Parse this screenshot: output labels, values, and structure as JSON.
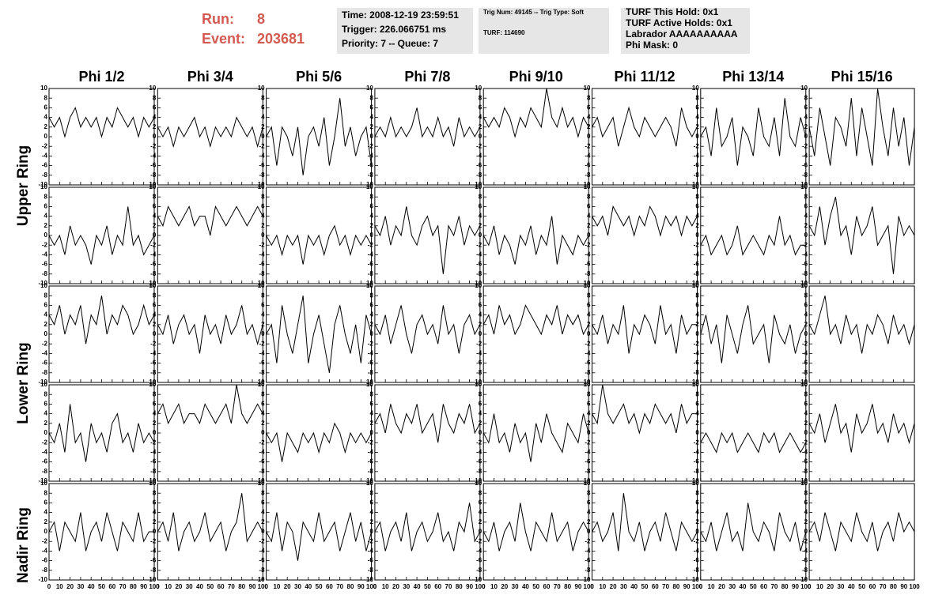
{
  "header": {
    "run_label": "Run:",
    "run": 8,
    "event_label": "Event:",
    "event": 203681,
    "box1": [
      "Time: 2008-12-19 23:59:51",
      "Trigger: 226.066751 ms",
      "Priority: 7 -- Queue: 7"
    ],
    "box2": [
      "Trig Num: 49145 -- Trig Type: Soft",
      "TURF: 114690"
    ],
    "box3": [
      "TURF This Hold: 0x1",
      "TURF Active Holds: 0x1",
      "Labrador AAAAAAAAAA",
      "Phi Mask: 0"
    ]
  },
  "chart_data": {
    "type": "line",
    "columns": [
      "Phi 1/2",
      "Phi 3/4",
      "Phi 5/6",
      "Phi 7/8",
      "Phi 9/10",
      "Phi 11/12",
      "Phi 13/14",
      "Phi 15/16"
    ],
    "rows": [
      "Upper Ring",
      "Lower Ring",
      "Nadir Ring"
    ],
    "color": "#000000",
    "xlim": [
      0,
      100
    ],
    "xticks": [
      0,
      10,
      20,
      30,
      40,
      50,
      60,
      70,
      80,
      90,
      100
    ],
    "ylim": [
      -10,
      10
    ],
    "yticks": [
      -10,
      -8,
      -6,
      -4,
      -2,
      0,
      2,
      4,
      6,
      8,
      10
    ],
    "x": [
      0,
      5,
      10,
      15,
      20,
      25,
      30,
      35,
      40,
      45,
      50,
      55,
      60,
      65,
      70,
      75,
      80,
      85,
      90,
      95,
      100
    ],
    "panels": [
      [
        [
          4,
          2,
          4,
          0,
          4,
          6,
          2,
          4,
          2,
          4,
          0,
          4,
          2,
          6,
          4,
          2,
          4,
          0,
          4,
          2,
          4
        ],
        [
          2,
          0,
          2,
          -2,
          2,
          0,
          2,
          4,
          0,
          2,
          -2,
          2,
          0,
          2,
          0,
          4,
          2,
          0,
          2,
          -2,
          2
        ],
        [
          0,
          2,
          -6,
          2,
          0,
          -4,
          2,
          -8,
          0,
          2,
          -2,
          4,
          -6,
          0,
          8,
          -2,
          2,
          -4,
          0,
          2,
          -6
        ],
        [
          0,
          2,
          0,
          4,
          0,
          2,
          0,
          2,
          6,
          0,
          2,
          0,
          4,
          0,
          2,
          -2,
          4,
          0,
          2,
          0,
          2
        ],
        [
          4,
          2,
          4,
          2,
          6,
          4,
          0,
          4,
          2,
          6,
          4,
          2,
          10,
          4,
          2,
          6,
          2,
          4,
          0,
          4,
          2
        ],
        [
          2,
          4,
          0,
          2,
          4,
          -2,
          2,
          6,
          2,
          0,
          4,
          2,
          0,
          2,
          4,
          2,
          -2,
          6,
          2,
          0,
          2
        ],
        [
          0,
          2,
          -4,
          6,
          -2,
          0,
          4,
          -6,
          2,
          0,
          -4,
          6,
          0,
          -2,
          4,
          -4,
          8,
          0,
          -2,
          4,
          0
        ],
        [
          2,
          -4,
          6,
          0,
          -6,
          4,
          2,
          -2,
          8,
          -4,
          6,
          0,
          -6,
          10,
          2,
          -4,
          6,
          -2,
          4,
          -6,
          2
        ]
      ],
      [
        [
          0,
          -2,
          0,
          -4,
          2,
          -2,
          0,
          -2,
          -6,
          0,
          -2,
          2,
          -4,
          0,
          -2,
          6,
          -2,
          0,
          -4,
          -2,
          0
        ],
        [
          4,
          2,
          6,
          4,
          2,
          4,
          6,
          2,
          4,
          4,
          0,
          6,
          4,
          2,
          4,
          6,
          4,
          2,
          4,
          6,
          4
        ],
        [
          0,
          -2,
          0,
          -4,
          0,
          -2,
          0,
          -6,
          0,
          -2,
          0,
          -4,
          0,
          2,
          -2,
          0,
          -4,
          0,
          -2,
          0,
          -2
        ],
        [
          2,
          0,
          4,
          -2,
          2,
          0,
          6,
          0,
          -2,
          2,
          4,
          0,
          2,
          -8,
          2,
          0,
          4,
          -2,
          2,
          0,
          2
        ],
        [
          0,
          -2,
          2,
          -4,
          0,
          -2,
          -6,
          0,
          -2,
          2,
          -4,
          0,
          -2,
          4,
          -6,
          0,
          -2,
          -4,
          0,
          -2,
          0
        ],
        [
          4,
          2,
          4,
          0,
          6,
          4,
          2,
          4,
          0,
          4,
          2,
          6,
          4,
          0,
          4,
          2,
          4,
          0,
          4,
          2,
          4
        ],
        [
          -2,
          0,
          -4,
          -2,
          0,
          -4,
          -2,
          2,
          -4,
          -2,
          0,
          -2,
          -4,
          0,
          -2,
          4,
          -2,
          0,
          -4,
          -2,
          -2
        ],
        [
          2,
          0,
          6,
          -2,
          4,
          8,
          0,
          2,
          -4,
          4,
          0,
          2,
          6,
          -2,
          0,
          2,
          -8,
          4,
          0,
          2,
          0
        ]
      ],
      [
        [
          4,
          2,
          6,
          0,
          4,
          2,
          6,
          -2,
          4,
          2,
          8,
          0,
          4,
          2,
          6,
          4,
          0,
          2,
          6,
          2,
          4
        ],
        [
          2,
          0,
          4,
          -2,
          2,
          4,
          0,
          2,
          -4,
          4,
          0,
          2,
          -2,
          4,
          0,
          2,
          6,
          0,
          2,
          -2,
          2
        ],
        [
          0,
          2,
          -6,
          6,
          0,
          -4,
          2,
          8,
          -6,
          0,
          4,
          -2,
          -8,
          2,
          6,
          0,
          -4,
          2,
          -6,
          4,
          0
        ],
        [
          2,
          0,
          4,
          -2,
          2,
          6,
          0,
          -4,
          2,
          4,
          0,
          2,
          -2,
          6,
          0,
          2,
          -4,
          2,
          4,
          0,
          2
        ],
        [
          2,
          4,
          0,
          6,
          2,
          4,
          0,
          2,
          6,
          4,
          2,
          0,
          4,
          2,
          6,
          0,
          4,
          2,
          4,
          0,
          2
        ],
        [
          2,
          0,
          4,
          -2,
          2,
          0,
          6,
          -4,
          2,
          0,
          4,
          2,
          -2,
          6,
          0,
          2,
          -4,
          4,
          0,
          2,
          2
        ],
        [
          0,
          4,
          -2,
          2,
          -6,
          4,
          0,
          -4,
          2,
          6,
          -2,
          0,
          2,
          -6,
          4,
          0,
          -2,
          2,
          -4,
          0,
          2
        ],
        [
          2,
          0,
          4,
          8,
          0,
          2,
          -2,
          4,
          0,
          2,
          -4,
          2,
          0,
          4,
          2,
          -2,
          4,
          0,
          2,
          -2,
          2
        ]
      ],
      [
        [
          0,
          -2,
          2,
          -4,
          6,
          -2,
          0,
          -6,
          2,
          -2,
          0,
          -4,
          2,
          4,
          -2,
          0,
          -4,
          2,
          -2,
          0,
          -2
        ],
        [
          4,
          6,
          2,
          4,
          6,
          2,
          4,
          4,
          2,
          6,
          4,
          2,
          4,
          6,
          2,
          10,
          4,
          2,
          4,
          6,
          4
        ],
        [
          0,
          -2,
          0,
          -6,
          0,
          -2,
          -4,
          0,
          -2,
          0,
          -4,
          0,
          -2,
          2,
          0,
          -4,
          0,
          -2,
          0,
          -2,
          0
        ],
        [
          2,
          4,
          0,
          6,
          2,
          0,
          4,
          2,
          6,
          0,
          2,
          4,
          -2,
          6,
          2,
          0,
          4,
          2,
          6,
          0,
          2
        ],
        [
          0,
          -2,
          4,
          -2,
          0,
          -4,
          2,
          -2,
          0,
          -6,
          2,
          -2,
          4,
          0,
          -2,
          -4,
          2,
          0,
          -2,
          4,
          0
        ],
        [
          4,
          2,
          10,
          4,
          2,
          4,
          6,
          2,
          4,
          0,
          4,
          2,
          6,
          4,
          2,
          4,
          0,
          6,
          2,
          4,
          4
        ],
        [
          -2,
          0,
          -2,
          -4,
          0,
          -2,
          0,
          -4,
          -2,
          0,
          -2,
          -4,
          0,
          -2,
          0,
          -4,
          -2,
          0,
          -2,
          -4,
          -2
        ],
        [
          2,
          0,
          4,
          -2,
          2,
          6,
          0,
          2,
          -4,
          4,
          0,
          2,
          6,
          0,
          2,
          -2,
          4,
          0,
          2,
          -2,
          2
        ]
      ],
      [
        [
          0,
          2,
          -4,
          2,
          0,
          -2,
          4,
          -4,
          0,
          2,
          -2,
          4,
          0,
          -4,
          2,
          0,
          -2,
          4,
          -2,
          0,
          0
        ],
        [
          0,
          2,
          -2,
          4,
          -4,
          0,
          2,
          -2,
          0,
          4,
          -2,
          0,
          2,
          -4,
          0,
          2,
          8,
          -2,
          0,
          2,
          0
        ],
        [
          0,
          -2,
          4,
          -4,
          2,
          0,
          -6,
          2,
          0,
          -2,
          4,
          -2,
          0,
          2,
          -4,
          0,
          4,
          -2,
          2,
          -4,
          0
        ],
        [
          0,
          2,
          -4,
          0,
          2,
          -2,
          4,
          -4,
          0,
          2,
          -2,
          0,
          4,
          -2,
          0,
          -4,
          2,
          0,
          6,
          -2,
          0
        ],
        [
          0,
          -2,
          2,
          -4,
          0,
          2,
          -2,
          6,
          0,
          -4,
          2,
          0,
          -2,
          4,
          -2,
          0,
          2,
          -4,
          0,
          2,
          0
        ],
        [
          0,
          2,
          -2,
          0,
          4,
          -4,
          8,
          0,
          -2,
          2,
          -4,
          0,
          2,
          -2,
          4,
          0,
          -4,
          2,
          0,
          -2,
          0
        ],
        [
          0,
          -2,
          2,
          -4,
          0,
          4,
          -2,
          0,
          -4,
          6,
          0,
          -2,
          2,
          0,
          -4,
          4,
          0,
          -2,
          2,
          -4,
          0
        ],
        [
          0,
          2,
          -2,
          4,
          0,
          -4,
          2,
          0,
          -2,
          4,
          0,
          -2,
          2,
          -4,
          0,
          2,
          -2,
          4,
          0,
          2,
          0
        ]
      ]
    ]
  }
}
